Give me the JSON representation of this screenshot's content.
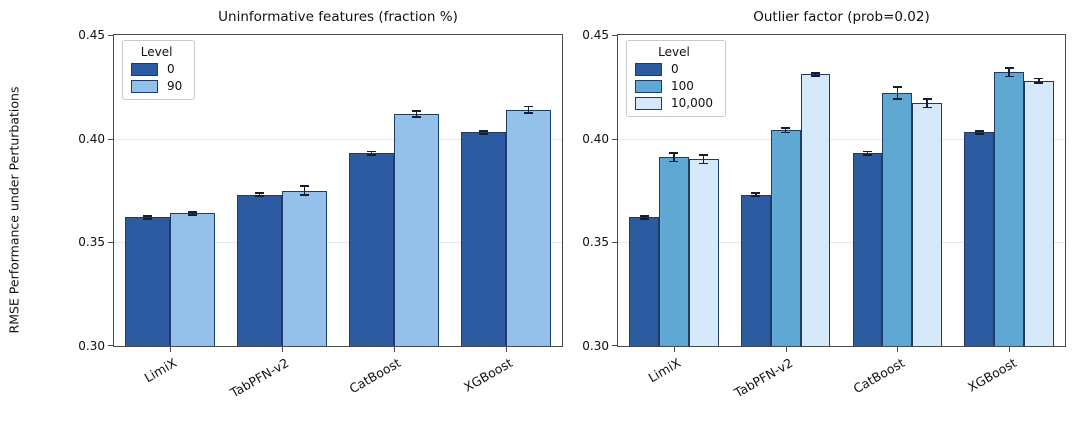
{
  "figure": {
    "ylabel": "RMSE Performance under Perturbations",
    "background": "#ffffff"
  },
  "style": {
    "bar_edge_color": "#1e3c66",
    "error_bar_color": "#141e33",
    "grid_color": "#e7e7e7",
    "spine_color": "#4a4a4a",
    "text_color": "#111111"
  },
  "chart_data": [
    {
      "type": "bar",
      "title": "Uninformative features (fraction %)",
      "legend_title": "Level",
      "legend_position": "upper-left",
      "grid": true,
      "categories": [
        "LimiX",
        "TabPFN-v2",
        "CatBoost",
        "XGBoost"
      ],
      "series": [
        {
          "name": "0",
          "color": "#2d5ba1",
          "values": [
            0.362,
            0.373,
            0.393,
            0.403
          ],
          "errors": [
            0.0008,
            0.0008,
            0.0008,
            0.0008
          ]
        },
        {
          "name": "90",
          "color": "#94c1e9",
          "values": [
            0.364,
            0.375,
            0.412,
            0.414
          ],
          "errors": [
            0.0008,
            0.002,
            0.0015,
            0.0015
          ]
        }
      ],
      "ylabel": "RMSE Performance under Perturbations",
      "xlabel": "",
      "ylim": [
        0.3,
        0.45
      ],
      "yticks": [
        0.3,
        0.35,
        0.4,
        0.45
      ]
    },
    {
      "type": "bar",
      "title": "Outlier factor (prob=0.02)",
      "legend_title": "Level",
      "legend_position": "upper-left",
      "grid": true,
      "categories": [
        "LimiX",
        "TabPFN-v2",
        "CatBoost",
        "XGBoost"
      ],
      "series": [
        {
          "name": "0",
          "color": "#2d5ba1",
          "values": [
            0.362,
            0.373,
            0.393,
            0.403
          ],
          "errors": [
            0.0008,
            0.0008,
            0.0008,
            0.0008
          ]
        },
        {
          "name": "100",
          "color": "#5fa8d3",
          "values": [
            0.391,
            0.404,
            0.422,
            0.432
          ],
          "errors": [
            0.002,
            0.001,
            0.003,
            0.002
          ]
        },
        {
          "name": "10,000",
          "color": "#d6e9fa",
          "values": [
            0.39,
            0.431,
            0.417,
            0.428
          ],
          "errors": [
            0.002,
            0.0008,
            0.002,
            0.001
          ]
        }
      ],
      "ylabel": "RMSE Performance under Perturbations",
      "xlabel": "",
      "ylim": [
        0.3,
        0.45
      ],
      "yticks": [
        0.3,
        0.35,
        0.4,
        0.45
      ]
    }
  ]
}
